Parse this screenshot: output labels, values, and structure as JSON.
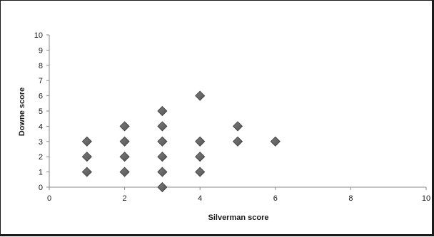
{
  "chart_data": {
    "type": "scatter",
    "xlabel": "Silverman score",
    "ylabel": "Downe score",
    "xlim": [
      0,
      10
    ],
    "ylim": [
      0,
      10
    ],
    "x_ticks": [
      0,
      2,
      4,
      6,
      8,
      10
    ],
    "y_ticks": [
      0,
      1,
      2,
      3,
      4,
      5,
      6,
      7,
      8,
      9,
      10
    ],
    "grid": false,
    "legend": "none",
    "marker": "diamond",
    "marker_color": "#555555",
    "points": [
      {
        "x": 1,
        "y": 1
      },
      {
        "x": 1,
        "y": 2
      },
      {
        "x": 1,
        "y": 3
      },
      {
        "x": 2,
        "y": 1
      },
      {
        "x": 2,
        "y": 2
      },
      {
        "x": 2,
        "y": 3
      },
      {
        "x": 2,
        "y": 4
      },
      {
        "x": 3,
        "y": 0
      },
      {
        "x": 3,
        "y": 1
      },
      {
        "x": 3,
        "y": 2
      },
      {
        "x": 3,
        "y": 3
      },
      {
        "x": 3,
        "y": 4
      },
      {
        "x": 3,
        "y": 5
      },
      {
        "x": 4,
        "y": 1
      },
      {
        "x": 4,
        "y": 2
      },
      {
        "x": 4,
        "y": 3
      },
      {
        "x": 4,
        "y": 6
      },
      {
        "x": 5,
        "y": 3
      },
      {
        "x": 5,
        "y": 4
      },
      {
        "x": 6,
        "y": 3
      }
    ]
  }
}
